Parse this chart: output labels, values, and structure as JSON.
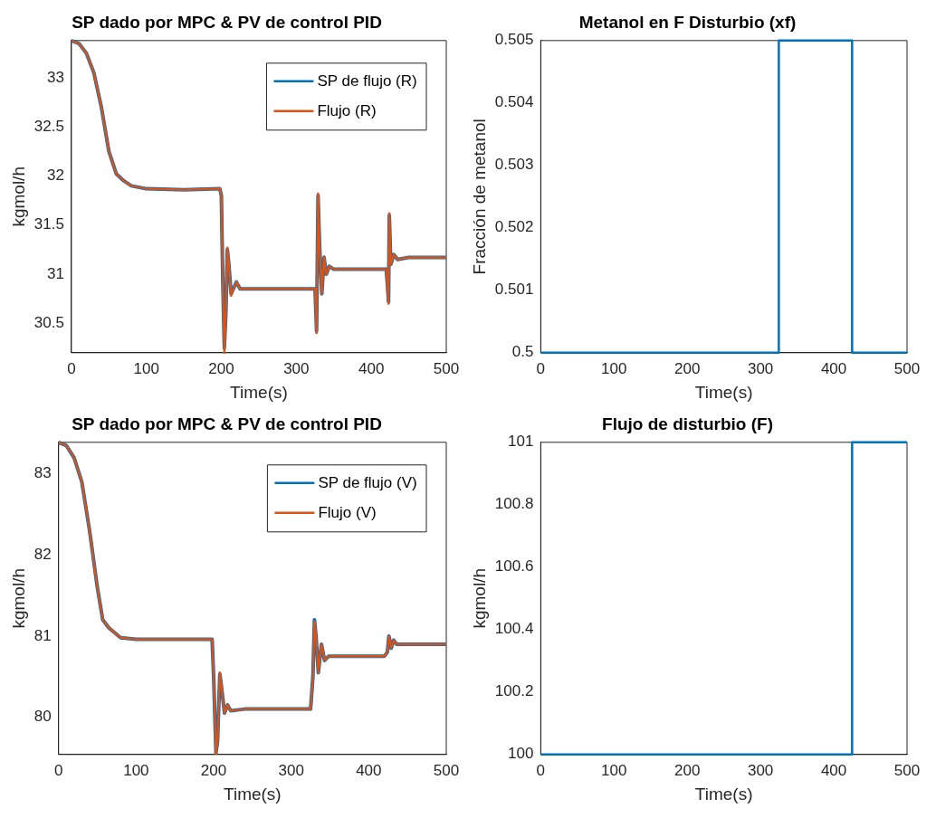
{
  "chart_data": [
    {
      "type": "line",
      "title": "SP dado por MPC & PV de control PID",
      "xlabel": "Time(s)",
      "ylabel": "kgmol/h",
      "xlim": [
        0,
        500
      ],
      "xticks": [
        0,
        100,
        200,
        300,
        400,
        500
      ],
      "ylim": [
        30.2,
        33.38
      ],
      "yticks": [
        30.5,
        31,
        31.5,
        32,
        32.5,
        33
      ],
      "grid": false,
      "legend": "top right",
      "marker": "none",
      "line_style": "solid",
      "series": [
        {
          "name": "SP de flujo (R)",
          "color": "#0072bd",
          "x": [
            0,
            10,
            20,
            30,
            40,
            50,
            60,
            70,
            80,
            100,
            150,
            198,
            200,
            202,
            204,
            206,
            208,
            210,
            213,
            216,
            220,
            225,
            240,
            325,
            327,
            329,
            331,
            334,
            337,
            340,
            344,
            350,
            420,
            423,
            424,
            426,
            430,
            435,
            450,
            500
          ],
          "values": [
            33.38,
            33.35,
            33.25,
            33.05,
            32.7,
            32.25,
            32.02,
            31.95,
            31.9,
            31.87,
            31.86,
            31.87,
            31.8,
            30.9,
            30.25,
            30.6,
            31.25,
            31.1,
            30.8,
            30.85,
            30.92,
            30.85,
            30.85,
            30.85,
            30.42,
            31.8,
            31.3,
            30.8,
            31.17,
            31.0,
            31.08,
            31.05,
            31.05,
            30.72,
            31.6,
            31.1,
            31.2,
            31.15,
            31.17,
            31.17
          ]
        },
        {
          "name": "Flujo (R)",
          "color": "#d95319",
          "x": [
            0,
            10,
            20,
            30,
            40,
            50,
            60,
            70,
            80,
            100,
            150,
            198,
            200,
            202,
            204,
            206,
            208,
            210,
            213,
            216,
            220,
            225,
            240,
            325,
            327,
            329,
            331,
            334,
            337,
            340,
            344,
            350,
            420,
            423,
            424,
            426,
            430,
            435,
            450,
            500
          ],
          "values": [
            33.38,
            33.35,
            33.25,
            33.05,
            32.7,
            32.25,
            32.02,
            31.95,
            31.9,
            31.87,
            31.86,
            31.87,
            31.8,
            30.9,
            30.2,
            30.6,
            31.27,
            31.1,
            30.78,
            30.85,
            30.92,
            30.85,
            30.85,
            30.85,
            30.4,
            31.82,
            31.3,
            30.8,
            31.18,
            31.0,
            31.08,
            31.05,
            31.05,
            30.7,
            31.62,
            31.1,
            31.2,
            31.15,
            31.17,
            31.17
          ]
        }
      ]
    },
    {
      "type": "step",
      "title": "Metanol en F Disturbio (xf)",
      "xlabel": "Time(s)",
      "ylabel": "Fracción de metanol",
      "xlim": [
        0,
        500
      ],
      "xticks": [
        0,
        100,
        200,
        300,
        400,
        500
      ],
      "ylim": [
        0.5,
        0.505
      ],
      "yticks": [
        0.5,
        0.501,
        0.502,
        0.503,
        0.504,
        0.505
      ],
      "grid": false,
      "marker": "none",
      "line_style": "solid",
      "series": [
        {
          "color": "#0072bd",
          "x": [
            0,
            325,
            425,
            500
          ],
          "values": [
            0.5,
            0.505,
            0.5,
            0.5
          ]
        }
      ]
    },
    {
      "type": "line",
      "title": "SP dado por MPC & PV de control PID",
      "xlabel": "Time(s)",
      "ylabel": "kgmol/h",
      "xlim": [
        0,
        500
      ],
      "xticks": [
        0,
        100,
        200,
        300,
        400,
        500
      ],
      "ylim": [
        79.54,
        83.39
      ],
      "yticks": [
        80,
        81,
        82,
        83
      ],
      "grid": false,
      "legend": "top right",
      "marker": "none",
      "line_style": "solid",
      "series": [
        {
          "name": "SP de flujo (V)",
          "color": "#0072bd",
          "x": [
            0,
            10,
            20,
            30,
            40,
            50,
            57,
            65,
            80,
            100,
            198,
            200,
            203,
            205,
            208,
            211,
            214,
            218,
            222,
            240,
            325,
            328,
            330,
            332,
            335,
            339,
            343,
            348,
            420,
            424,
            426,
            429,
            432,
            436,
            500
          ],
          "values": [
            83.39,
            83.35,
            83.2,
            82.9,
            82.3,
            81.6,
            81.2,
            81.1,
            80.98,
            80.96,
            80.96,
            80.5,
            79.56,
            79.7,
            80.53,
            80.3,
            80.05,
            80.15,
            80.08,
            80.1,
            80.1,
            80.5,
            81.2,
            81.0,
            80.55,
            80.9,
            80.7,
            80.75,
            80.75,
            80.8,
            81.0,
            80.85,
            80.95,
            80.9,
            80.9
          ]
        },
        {
          "name": "Flujo (V)",
          "color": "#d95319",
          "x": [
            0,
            10,
            20,
            30,
            40,
            50,
            57,
            65,
            80,
            100,
            198,
            200,
            203,
            205,
            208,
            211,
            214,
            218,
            222,
            240,
            325,
            328,
            330,
            332,
            335,
            339,
            343,
            348,
            420,
            424,
            426,
            429,
            432,
            436,
            500
          ],
          "values": [
            83.39,
            83.35,
            83.2,
            82.9,
            82.3,
            81.6,
            81.2,
            81.1,
            80.98,
            80.96,
            80.96,
            80.5,
            79.55,
            79.7,
            80.55,
            80.3,
            80.05,
            80.15,
            80.08,
            80.1,
            80.1,
            80.5,
            81.18,
            81.0,
            80.55,
            80.9,
            80.7,
            80.75,
            80.75,
            80.8,
            81.0,
            80.85,
            80.95,
            80.9,
            80.9
          ]
        }
      ]
    },
    {
      "type": "step",
      "title": "Flujo de disturbio (F)",
      "xlabel": "Time(s)",
      "ylabel": "kgmol/h",
      "xlim": [
        0,
        500
      ],
      "xticks": [
        0,
        100,
        200,
        300,
        400,
        500
      ],
      "ylim": [
        100,
        101
      ],
      "yticks": [
        100,
        100.2,
        100.4,
        100.6,
        100.8,
        101
      ],
      "grid": false,
      "marker": "none",
      "line_style": "solid",
      "series": [
        {
          "color": "#0072bd",
          "x": [
            0,
            424,
            425,
            500
          ],
          "values": [
            100,
            100,
            101,
            101
          ]
        }
      ]
    }
  ]
}
